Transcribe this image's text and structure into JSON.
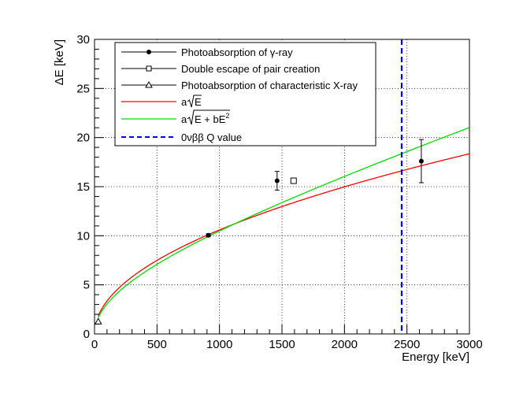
{
  "chart_data": {
    "type": "scatter",
    "xlabel": "Energy [keV]",
    "ylabel": "ΔE [keV]",
    "xlim": [
      0,
      3000
    ],
    "ylim": [
      0,
      30
    ],
    "xticks": [
      0,
      500,
      1000,
      1500,
      2000,
      2500,
      3000
    ],
    "yticks": [
      0,
      5,
      10,
      15,
      20,
      25,
      30
    ],
    "xtick_labels": [
      "0",
      "500",
      "1000",
      "1500",
      "2000",
      "2500",
      "3000"
    ],
    "ytick_labels": [
      "0",
      "5",
      "10",
      "15",
      "20",
      "25",
      "30"
    ],
    "grid": true,
    "legend_position": "top-left",
    "points": [
      {
        "series": "photo_gamma",
        "x": 911,
        "y": 10.05,
        "yerr": 0.15
      },
      {
        "series": "photo_gamma",
        "x": 1461,
        "y": 15.6,
        "yerr": 0.95
      },
      {
        "series": "photo_gamma",
        "x": 2615,
        "y": 17.6,
        "yerr": 2.2
      },
      {
        "series": "double_escape",
        "x": 1593,
        "y": 15.6,
        "yerr": 0
      },
      {
        "series": "photo_xray",
        "x": 30,
        "y": 1.25,
        "yerr": 0
      }
    ],
    "curves": [
      {
        "series": "fit_sqrt",
        "formula": "a*sqrt(E)",
        "a": 0.335,
        "color": "#ff0000"
      },
      {
        "series": "fit_sqrt_quad",
        "formula": "a*sqrt(E + b*E^2)",
        "a": 0.302,
        "b": 0.000205,
        "color": "#00dd00"
      }
    ],
    "q_value": {
      "series": "q_value",
      "x": 2458,
      "color": "#0000ff"
    },
    "legend": [
      {
        "key": "photo_gamma",
        "label_pre": "Photoabsorption of ",
        "label_greek": "γ",
        "label_post": "-ray",
        "marker": "filled-circle"
      },
      {
        "key": "double_escape",
        "label": "Double escape of pair creation",
        "marker": "open-square"
      },
      {
        "key": "photo_xray",
        "label": "Photoabsorption of characteristic X-ray",
        "marker": "open-triangle"
      },
      {
        "key": "fit_sqrt",
        "label_a": "a",
        "label_body": "E",
        "marker": "red-line"
      },
      {
        "key": "fit_sqrt_quad",
        "label_a": "a",
        "label_body": "E + bE",
        "label_sup": "2",
        "marker": "green-line"
      },
      {
        "key": "q_value",
        "label": "0νββ Q value",
        "marker": "blue-dashed-line"
      }
    ]
  }
}
